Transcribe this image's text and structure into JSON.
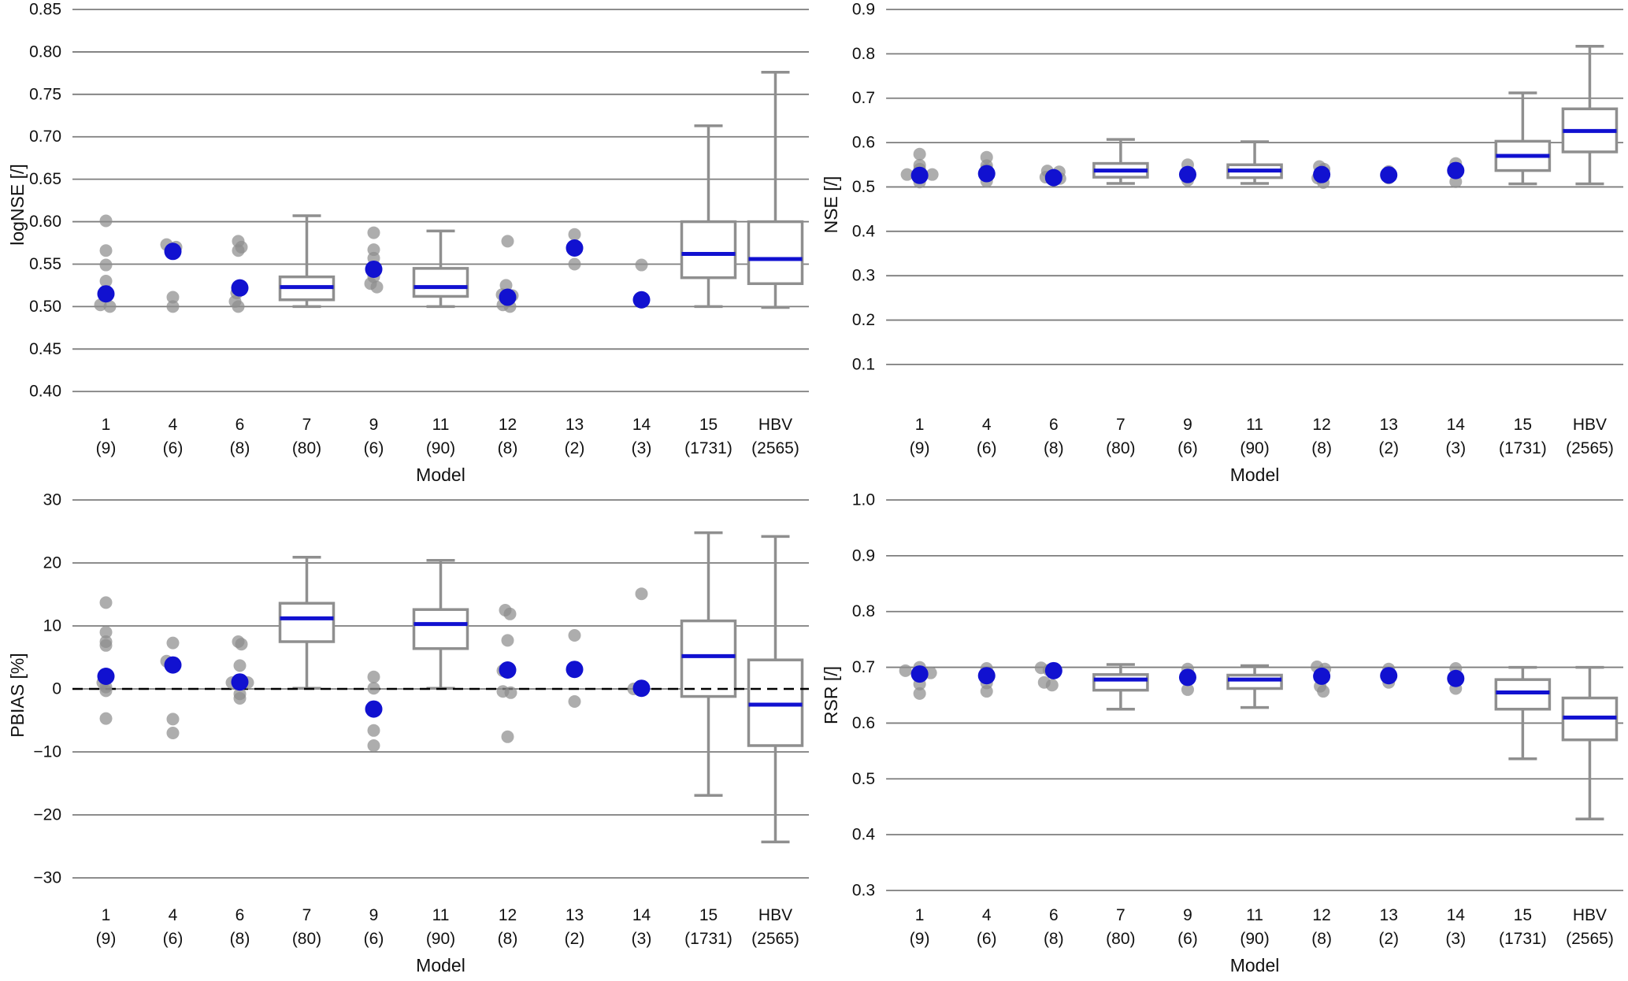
{
  "figure": {
    "background": "#ffffff"
  },
  "colors": {
    "grid": "#7d7d7d",
    "box_edge": "#8f8f8f",
    "whisker": "#8f8f8f",
    "median_line": "#1111d0",
    "gray_dot": "#8e8e8e",
    "blue_dot": "#1111d0",
    "zero_line": "#000000",
    "text": "#111111"
  },
  "categories": [
    "1",
    "4",
    "6",
    "7",
    "9",
    "11",
    "12",
    "13",
    "14",
    "15",
    "HBV"
  ],
  "counts": [
    "(9)",
    "(6)",
    "(8)",
    "(80)",
    "(6)",
    "(90)",
    "(8)",
    "(2)",
    "(3)",
    "(1731)",
    "(2565)"
  ],
  "xlabel": "Model",
  "chart_data": [
    {
      "type": "boxplot+scatter",
      "panel_id": "logNSE",
      "ylabel": "logNSE [/]",
      "ylim": [
        0.39,
        0.85
      ],
      "yticks": [
        0.85,
        0.8,
        0.75,
        0.7,
        0.65,
        0.6,
        0.55,
        0.5,
        0.45,
        0.4
      ],
      "ytick_labels": [
        "0.85",
        "0.80",
        "0.75",
        "0.70",
        "0.65",
        "0.60",
        "0.55",
        "0.50",
        "0.45",
        "0.40"
      ],
      "zero_line": false,
      "items": [
        {
          "kind": "scatter",
          "gray": [
            [
              0.601,
              0
            ],
            [
              0.566,
              0
            ],
            [
              0.549,
              0
            ],
            [
              0.53,
              0
            ],
            [
              0.502,
              -7
            ],
            [
              0.5,
              5
            ]
          ],
          "blue": 0.515
        },
        {
          "kind": "scatter",
          "gray": [
            [
              0.573,
              -8
            ],
            [
              0.57,
              4
            ],
            [
              0.511,
              0
            ],
            [
              0.5,
              0
            ]
          ],
          "blue": 0.565
        },
        {
          "kind": "scatter",
          "gray": [
            [
              0.577,
              -2
            ],
            [
              0.57,
              2
            ],
            [
              0.566,
              -2
            ],
            [
              0.516,
              -4
            ],
            [
              0.506,
              -6
            ],
            [
              0.5,
              -2
            ]
          ],
          "blue": 0.522
        },
        {
          "kind": "box",
          "lo": 0.5,
          "q1": 0.508,
          "med": 0.523,
          "q3": 0.535,
          "hi": 0.607
        },
        {
          "kind": "scatter",
          "gray": [
            [
              0.587,
              0
            ],
            [
              0.567,
              0
            ],
            [
              0.557,
              0
            ],
            [
              0.535,
              0
            ],
            [
              0.527,
              -4
            ],
            [
              0.523,
              4
            ]
          ],
          "blue": 0.544
        },
        {
          "kind": "box",
          "lo": 0.5,
          "q1": 0.512,
          "med": 0.523,
          "q3": 0.545,
          "hi": 0.589
        },
        {
          "kind": "scatter",
          "gray": [
            [
              0.577,
              0
            ],
            [
              0.525,
              -2
            ],
            [
              0.514,
              -7
            ],
            [
              0.513,
              6
            ],
            [
              0.502,
              -6
            ],
            [
              0.5,
              3
            ]
          ],
          "blue": 0.511
        },
        {
          "kind": "scatter",
          "gray": [
            [
              0.585,
              0
            ],
            [
              0.55,
              0
            ]
          ],
          "blue": 0.569
        },
        {
          "kind": "scatter",
          "gray": [
            [
              0.549,
              0
            ],
            [
              0.505,
              0
            ]
          ],
          "blue": 0.508
        },
        {
          "kind": "box",
          "lo": 0.5,
          "q1": 0.534,
          "med": 0.562,
          "q3": 0.6,
          "hi": 0.713
        },
        {
          "kind": "box",
          "lo": 0.499,
          "q1": 0.527,
          "med": 0.556,
          "q3": 0.6,
          "hi": 0.776
        }
      ]
    },
    {
      "type": "boxplot+scatter",
      "panel_id": "NSE",
      "ylabel": "NSE [/]",
      "ylim": [
        0.02,
        0.9
      ],
      "yticks": [
        0.9,
        0.8,
        0.7,
        0.6,
        0.5,
        0.4,
        0.3,
        0.2,
        0.1
      ],
      "ytick_labels": [
        "0.9",
        "0.8",
        "0.7",
        "0.6",
        "0.5",
        "0.4",
        "0.3",
        "0.2",
        "0.1"
      ],
      "zero_line": false,
      "items": [
        {
          "kind": "scatter",
          "gray": [
            [
              0.574,
              0
            ],
            [
              0.549,
              0
            ],
            [
              0.54,
              0
            ],
            [
              0.528,
              -16
            ],
            [
              0.528,
              16
            ],
            [
              0.511,
              0
            ]
          ],
          "blue": 0.526
        },
        {
          "kind": "scatter",
          "gray": [
            [
              0.567,
              0
            ],
            [
              0.548,
              0
            ],
            [
              0.54,
              0
            ],
            [
              0.513,
              0
            ]
          ],
          "blue": 0.53
        },
        {
          "kind": "scatter",
          "gray": [
            [
              0.536,
              -8
            ],
            [
              0.534,
              7
            ],
            [
              0.522,
              -10
            ],
            [
              0.519,
              8
            ]
          ],
          "blue": 0.521
        },
        {
          "kind": "box",
          "lo": 0.508,
          "q1": 0.522,
          "med": 0.537,
          "q3": 0.553,
          "hi": 0.607
        },
        {
          "kind": "scatter",
          "gray": [
            [
              0.55,
              0
            ],
            [
              0.515,
              0
            ]
          ],
          "blue": 0.528
        },
        {
          "kind": "box",
          "lo": 0.508,
          "q1": 0.521,
          "med": 0.537,
          "q3": 0.55,
          "hi": 0.602
        },
        {
          "kind": "scatter",
          "gray": [
            [
              0.546,
              -3
            ],
            [
              0.54,
              3
            ],
            [
              0.52,
              -5
            ],
            [
              0.51,
              2
            ]
          ],
          "blue": 0.528
        },
        {
          "kind": "scatter",
          "gray": [
            [
              0.535,
              0
            ],
            [
              0.52,
              0
            ]
          ],
          "blue": 0.527
        },
        {
          "kind": "scatter",
          "gray": [
            [
              0.553,
              0
            ],
            [
              0.512,
              0
            ]
          ],
          "blue": 0.537
        },
        {
          "kind": "box",
          "lo": 0.507,
          "q1": 0.537,
          "med": 0.57,
          "q3": 0.603,
          "hi": 0.712
        },
        {
          "kind": "box",
          "lo": 0.507,
          "q1": 0.579,
          "med": 0.626,
          "q3": 0.676,
          "hi": 0.817
        }
      ]
    },
    {
      "type": "boxplot+scatter",
      "panel_id": "PBIAS",
      "ylabel": "PBIAS [%]",
      "ylim": [
        -32,
        30
      ],
      "yticks": [
        30,
        20,
        10,
        0,
        -10,
        -20,
        -30
      ],
      "ytick_labels": [
        "30",
        "20",
        "10",
        "0",
        "−10",
        "−20",
        "−30"
      ],
      "zero_line": true,
      "items": [
        {
          "kind": "scatter",
          "gray": [
            [
              13.7,
              0
            ],
            [
              9.0,
              0
            ],
            [
              7.5,
              0
            ],
            [
              6.9,
              0
            ],
            [
              1.0,
              -4
            ],
            [
              0.3,
              0
            ],
            [
              -0.3,
              0
            ],
            [
              -4.7,
              0
            ]
          ],
          "blue": 2.0
        },
        {
          "kind": "scatter",
          "gray": [
            [
              7.3,
              0
            ],
            [
              4.4,
              -8
            ],
            [
              -4.8,
              0
            ],
            [
              -7.0,
              0
            ]
          ],
          "blue": 3.8
        },
        {
          "kind": "scatter",
          "gray": [
            [
              7.5,
              -2
            ],
            [
              7.1,
              2
            ],
            [
              3.7,
              0
            ],
            [
              1.0,
              -10
            ],
            [
              1.0,
              10
            ],
            [
              -0.8,
              0
            ],
            [
              -1.5,
              0
            ]
          ],
          "blue": 1.1
        },
        {
          "kind": "box",
          "lo": 0.1,
          "q1": 7.5,
          "med": 11.2,
          "q3": 13.6,
          "hi": 20.9
        },
        {
          "kind": "scatter",
          "gray": [
            [
              1.9,
              0
            ],
            [
              0.1,
              0
            ],
            [
              -2.9,
              0
            ],
            [
              -6.6,
              0
            ],
            [
              -9.0,
              0
            ]
          ],
          "blue": -3.2
        },
        {
          "kind": "box",
          "lo": 0.1,
          "q1": 6.4,
          "med": 10.3,
          "q3": 12.6,
          "hi": 20.4
        },
        {
          "kind": "scatter",
          "gray": [
            [
              12.5,
              -3
            ],
            [
              11.9,
              3
            ],
            [
              7.7,
              0
            ],
            [
              2.9,
              -6
            ],
            [
              -0.4,
              -6
            ],
            [
              -0.6,
              4
            ],
            [
              -7.6,
              0
            ]
          ],
          "blue": 3.0
        },
        {
          "kind": "scatter",
          "gray": [
            [
              8.5,
              0
            ],
            [
              -2.0,
              0
            ]
          ],
          "blue": 3.1
        },
        {
          "kind": "scatter",
          "gray": [
            [
              15.1,
              0
            ],
            [
              0.0,
              -10
            ]
          ],
          "blue": 0.1
        },
        {
          "kind": "box",
          "lo": -16.9,
          "q1": -1.2,
          "med": 5.2,
          "q3": 10.8,
          "hi": 24.8
        },
        {
          "kind": "box",
          "lo": -24.3,
          "q1": -9.0,
          "med": -2.5,
          "q3": 4.6,
          "hi": 24.2
        }
      ]
    },
    {
      "type": "boxplot+scatter",
      "panel_id": "RSR",
      "ylabel": "RSR [/]",
      "ylim": [
        0.3,
        1.0
      ],
      "yticks": [
        1.0,
        0.9,
        0.8,
        0.7,
        0.6,
        0.5,
        0.4,
        0.3
      ],
      "ytick_labels": [
        "1.0",
        "0.9",
        "0.8",
        "0.7",
        "0.6",
        "0.5",
        "0.4",
        "0.3"
      ],
      "zero_line": false,
      "items": [
        {
          "kind": "scatter",
          "gray": [
            [
              0.7,
              0
            ],
            [
              0.694,
              -18
            ],
            [
              0.69,
              14
            ],
            [
              0.685,
              0
            ],
            [
              0.67,
              0
            ],
            [
              0.653,
              0
            ]
          ],
          "blue": 0.688
        },
        {
          "kind": "scatter",
          "gray": [
            [
              0.698,
              0
            ],
            [
              0.672,
              0
            ],
            [
              0.657,
              0
            ]
          ],
          "blue": 0.685
        },
        {
          "kind": "scatter",
          "gray": [
            [
              0.699,
              -16
            ],
            [
              0.695,
              -6
            ],
            [
              0.673,
              -12
            ],
            [
              0.668,
              -2
            ]
          ],
          "blue": 0.694
        },
        {
          "kind": "box",
          "lo": 0.625,
          "q1": 0.659,
          "med": 0.678,
          "q3": 0.687,
          "hi": 0.705
        },
        {
          "kind": "scatter",
          "gray": [
            [
              0.697,
              0
            ],
            [
              0.66,
              0
            ]
          ],
          "blue": 0.682
        },
        {
          "kind": "box",
          "lo": 0.628,
          "q1": 0.662,
          "med": 0.678,
          "q3": 0.686,
          "hi": 0.703
        },
        {
          "kind": "scatter",
          "gray": [
            [
              0.701,
              -6
            ],
            [
              0.697,
              4
            ],
            [
              0.666,
              -2
            ],
            [
              0.657,
              2
            ]
          ],
          "blue": 0.684
        },
        {
          "kind": "scatter",
          "gray": [
            [
              0.697,
              0
            ],
            [
              0.673,
              0
            ]
          ],
          "blue": 0.685
        },
        {
          "kind": "scatter",
          "gray": [
            [
              0.698,
              0
            ],
            [
              0.662,
              0
            ]
          ],
          "blue": 0.68
        },
        {
          "kind": "box",
          "lo": 0.536,
          "q1": 0.625,
          "med": 0.655,
          "q3": 0.678,
          "hi": 0.7
        },
        {
          "kind": "box",
          "lo": 0.428,
          "q1": 0.57,
          "med": 0.61,
          "q3": 0.645,
          "hi": 0.7
        }
      ]
    }
  ]
}
